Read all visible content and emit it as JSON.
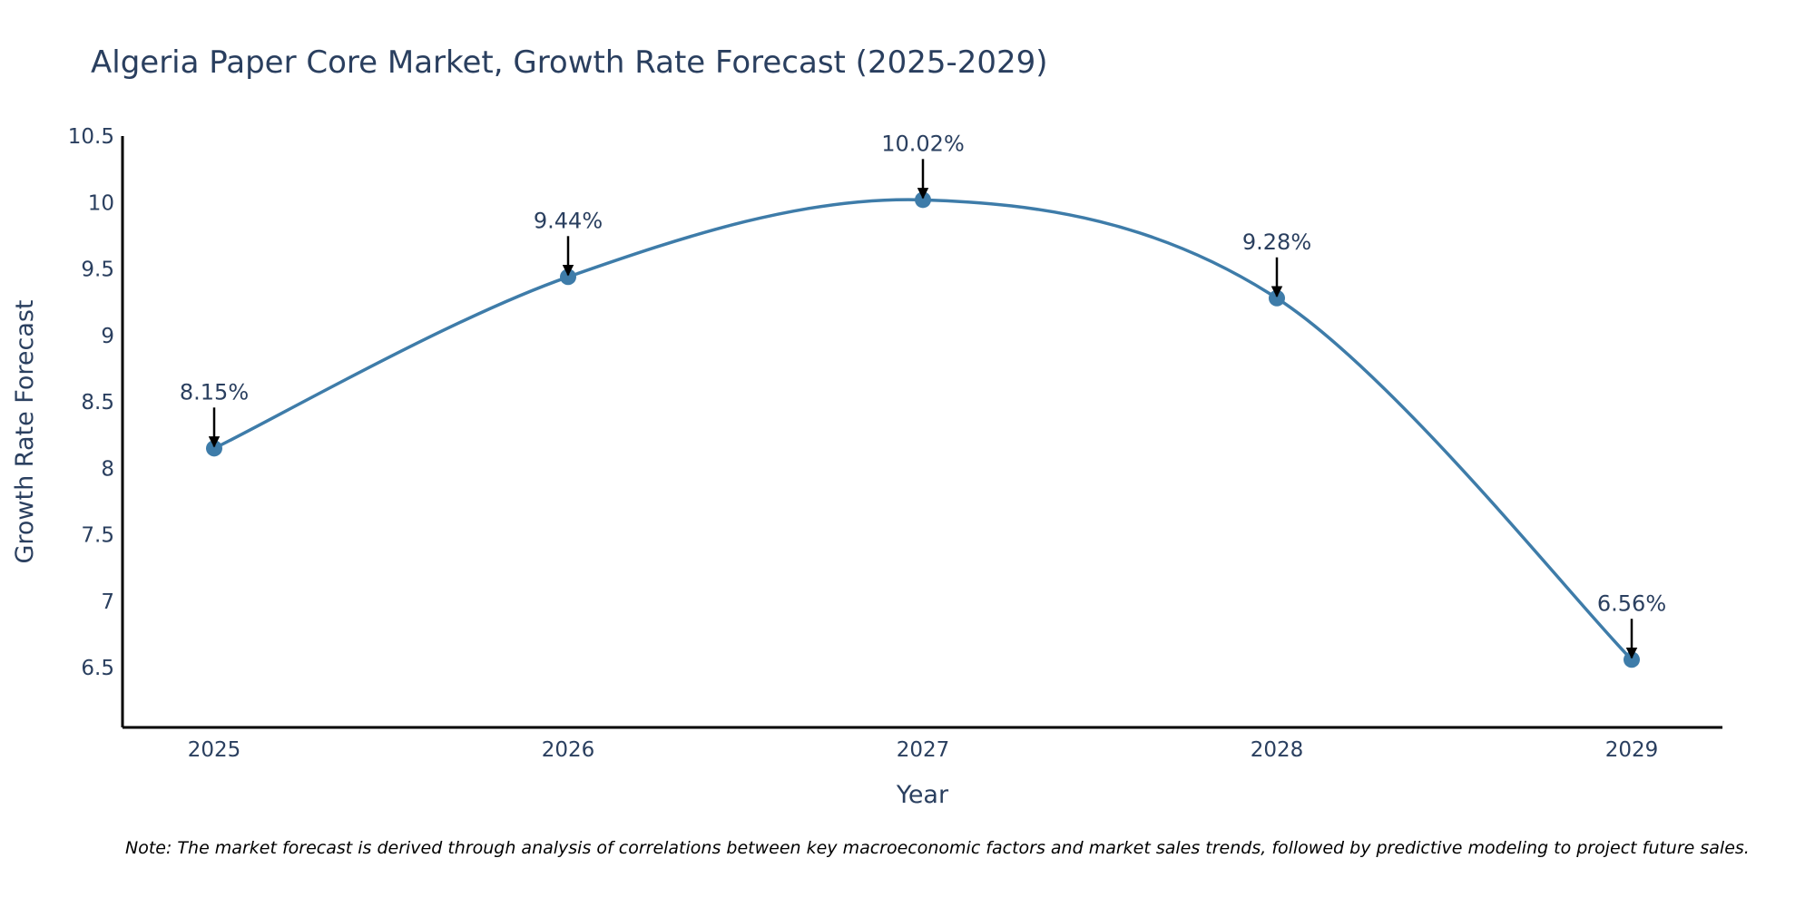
{
  "chart_data": {
    "type": "line",
    "title": "Algeria Paper Core Market, Growth Rate Forecast (2025-2029)",
    "xlabel": "Year",
    "ylabel": "Growth Rate Forecast",
    "categories": [
      "2025",
      "2026",
      "2027",
      "2028",
      "2029"
    ],
    "series": [
      {
        "name": "Growth Rate Forecast",
        "values": [
          8.15,
          9.44,
          10.02,
          9.28,
          6.56
        ],
        "data_labels": [
          "8.15%",
          "9.44%",
          "10.02%",
          "9.28%",
          "6.56%"
        ]
      }
    ],
    "ylim": [
      6.05,
      10.5
    ],
    "yticks": [
      6.5,
      7,
      7.5,
      8,
      8.5,
      9,
      9.5,
      10,
      10.5
    ],
    "ytick_labels": [
      "6.5",
      "7",
      "7.5",
      "8",
      "8.5",
      "9",
      "9.5",
      "10",
      "10.5"
    ],
    "grid": false,
    "line_shape": "spline",
    "colors": {
      "line": "#3e7ca9",
      "marker": "#3e7ca9",
      "axis": "#000000",
      "text": "#2a3f5f",
      "arrow": "#000000"
    },
    "note": "Note: The market forecast is derived through analysis of correlations between key macroeconomic factors and market sales trends, followed by predictive modeling to project future sales."
  }
}
